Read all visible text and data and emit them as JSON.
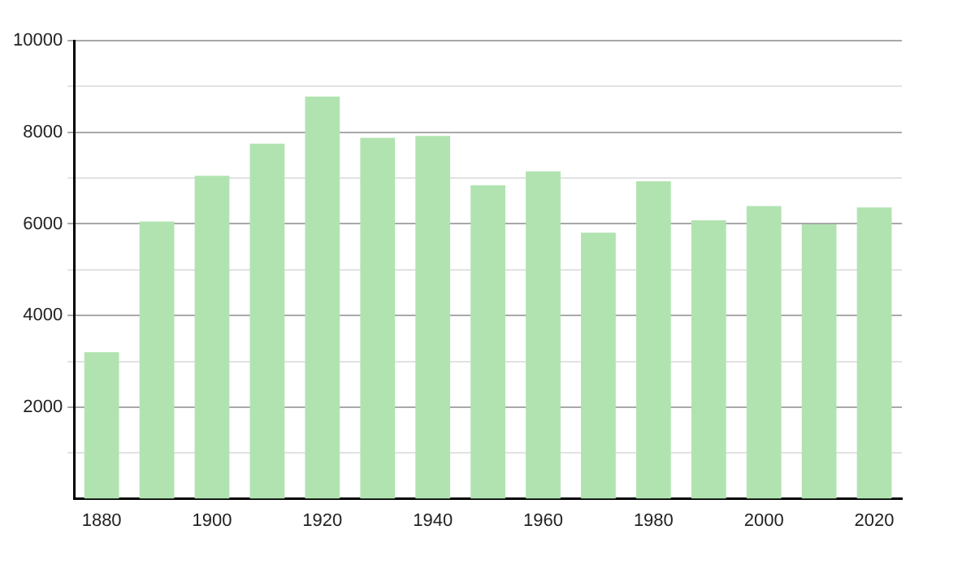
{
  "chart_data": {
    "type": "bar",
    "categories": [
      "1880",
      null,
      "1900",
      null,
      "1920",
      null,
      "1940",
      null,
      "1960",
      null,
      "1980",
      null,
      "2000",
      null,
      "2020"
    ],
    "values": [
      3200,
      6050,
      7050,
      7750,
      8780,
      7880,
      7920,
      6840,
      7150,
      5810,
      6930,
      6080,
      6390,
      5990,
      6360
    ],
    "color": "#b1e3b1",
    "ylim": [
      0,
      10000
    ],
    "yticks": [
      {
        "value": 1000,
        "label": null
      },
      2000,
      {
        "value": 3000,
        "label": null
      },
      4000,
      {
        "value": 5000,
        "label": null
      },
      6000,
      {
        "value": 7000,
        "label": null
      },
      8000,
      {
        "value": 9000,
        "label": null
      },
      10000
    ],
    "grid": "y",
    "legend": false
  }
}
